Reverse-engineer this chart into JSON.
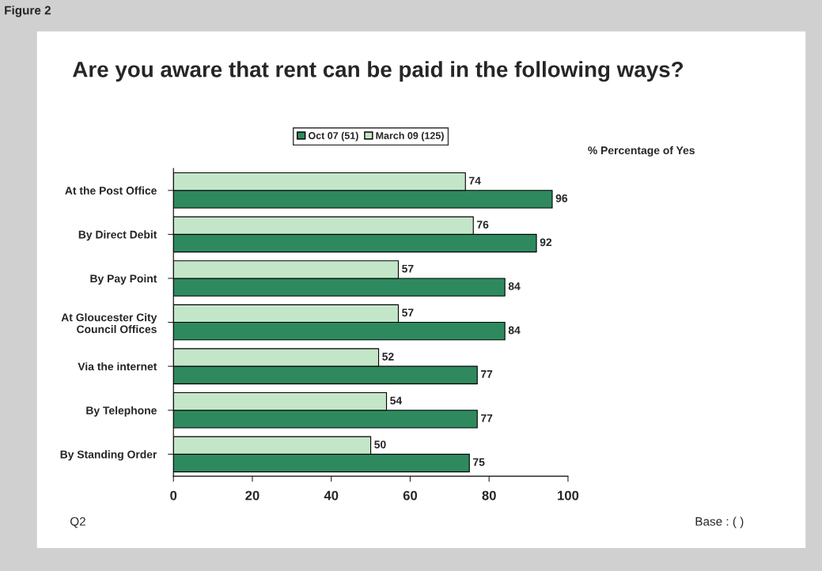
{
  "chart_data": {
    "type": "bar",
    "orientation": "horizontal",
    "title": "Are you aware that rent can be paid in the following ways?",
    "categories": [
      "At the Post Office",
      "By Direct Debit",
      "By Pay Point",
      "At Gloucester City\nCouncil Offices",
      "Via the internet",
      "By Telephone",
      "By Standing Order"
    ],
    "series": [
      {
        "name": "Oct 07 (51)",
        "color": "#2e8a5e",
        "values": [
          96,
          92,
          84,
          84,
          77,
          77,
          75
        ]
      },
      {
        "name": "March 09 (125)",
        "color": "#c4e6c8",
        "values": [
          74,
          76,
          57,
          57,
          52,
          54,
          50
        ]
      }
    ],
    "xlim": [
      0,
      100
    ],
    "xticks": [
      0,
      20,
      40,
      60,
      80,
      100
    ],
    "grid": false,
    "legend": "top",
    "data_labels": true,
    "annotations": [
      "Figure 2",
      "% Percentage of Yes",
      "Q2",
      "Base : ( )"
    ]
  }
}
